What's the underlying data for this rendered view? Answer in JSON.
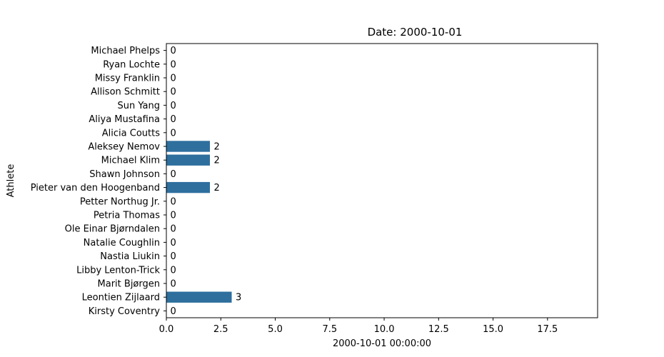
{
  "chart_data": {
    "type": "bar",
    "orientation": "horizontal",
    "title": "Date: 2000-10-01",
    "xlabel": "2000-10-01 00:00:00",
    "ylabel": "Athlete",
    "xlim": [
      0,
      19.8
    ],
    "xticks": [
      "0.0",
      "2.5",
      "5.0",
      "7.5",
      "10.0",
      "12.5",
      "15.0",
      "17.5"
    ],
    "grid": false,
    "bar_color": "#2e6f9e",
    "categories": [
      "Michael Phelps",
      "Ryan Lochte",
      "Missy Franklin",
      "Allison Schmitt",
      "Sun Yang",
      "Aliya Mustafina",
      "Alicia Coutts",
      "Aleksey Nemov",
      "Michael Klim",
      "Shawn Johnson",
      "Pieter van den Hoogenband",
      "Petter Northug Jr.",
      "Petria Thomas",
      "Ole Einar Bjørndalen",
      "Natalie Coughlin",
      "Nastia Liukin",
      "Libby Lenton-Trick",
      "Marit Bjørgen",
      "Leontien Zijlaard",
      "Kirsty Coventry"
    ],
    "values": [
      0,
      0,
      0,
      0,
      0,
      0,
      0,
      2,
      2,
      0,
      2,
      0,
      0,
      0,
      0,
      0,
      0,
      0,
      3,
      0
    ]
  }
}
